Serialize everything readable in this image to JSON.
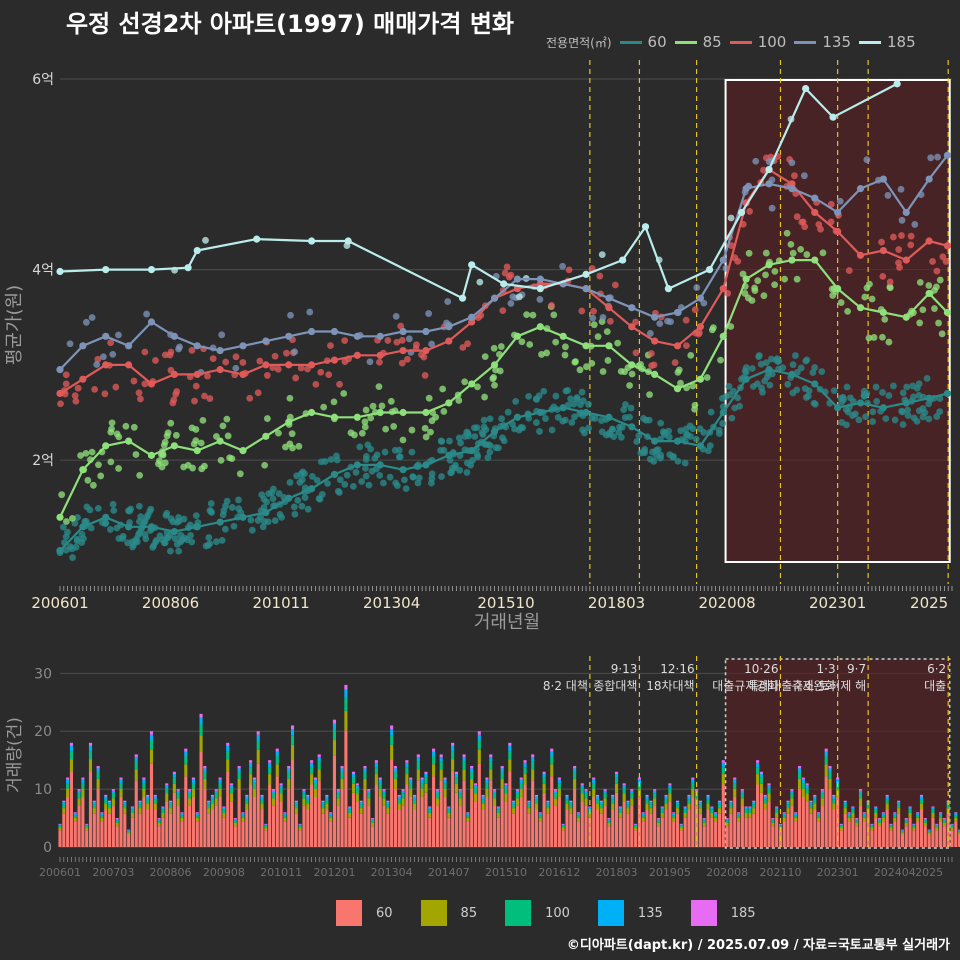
{
  "title": "우정 선경2차 아파트(1997) 매매가격 변화",
  "footer": "©디아파트(dapt.kr) / 2025.07.09 / 자료=국토교통부 실거래가",
  "legend_title": "전용면적(㎡)",
  "colors": {
    "60": "#2a8a8a",
    "85": "#8ee07a",
    "100": "#e05a5a",
    "135": "#7d93b8",
    "185": "#b9ecea",
    "bar60": "#f8766d",
    "bar85": "#a3a500",
    "bar100": "#00bf7d",
    "bar135": "#00b0f6",
    "bar185": "#e76bf3",
    "policy": "#e6c229",
    "highlight": "#5a1e22"
  },
  "chart_data": [
    {
      "type": "line",
      "title": "우정 선경2차 아파트(1997) 매매가격 변화",
      "xlabel": "거래년월",
      "ylabel": "평균가(원)",
      "x_ticks": [
        "200601",
        "200806",
        "201011",
        "201304",
        "201510",
        "201803",
        "202008",
        "202301",
        "2025"
      ],
      "y_ticks": [
        "2억",
        "4억",
        "6억"
      ],
      "ylim": [
        0.7,
        6.2
      ],
      "y_unit": "억",
      "legend_placement": "top-right",
      "series": [
        {
          "name": "60",
          "color": "#2a8a8a",
          "points": [
            [
              2006.0,
              1.05
            ],
            [
              2006.5,
              1.3
            ],
            [
              2007.0,
              1.4
            ],
            [
              2007.5,
              1.3
            ],
            [
              2008.0,
              1.3
            ],
            [
              2008.5,
              1.25
            ],
            [
              2009.0,
              1.3
            ],
            [
              2009.5,
              1.35
            ],
            [
              2010.0,
              1.4
            ],
            [
              2010.5,
              1.45
            ],
            [
              2011.0,
              1.6
            ],
            [
              2011.5,
              1.7
            ],
            [
              2012.0,
              1.85
            ],
            [
              2012.5,
              1.95
            ],
            [
              2013.0,
              1.95
            ],
            [
              2013.5,
              1.9
            ],
            [
              2014.0,
              1.95
            ],
            [
              2014.5,
              2.05
            ],
            [
              2015.0,
              2.1
            ],
            [
              2015.5,
              2.3
            ],
            [
              2016.0,
              2.45
            ],
            [
              2016.5,
              2.5
            ],
            [
              2017.0,
              2.55
            ],
            [
              2017.5,
              2.5
            ],
            [
              2018.0,
              2.45
            ],
            [
              2018.5,
              2.35
            ],
            [
              2019.0,
              2.2
            ],
            [
              2019.5,
              2.2
            ],
            [
              2020.0,
              2.15
            ],
            [
              2020.5,
              2.5
            ],
            [
              2021.0,
              2.85
            ],
            [
              2021.5,
              2.95
            ],
            [
              2022.0,
              2.9
            ],
            [
              2022.5,
              2.8
            ],
            [
              2023.0,
              2.55
            ],
            [
              2023.5,
              2.6
            ],
            [
              2024.0,
              2.55
            ],
            [
              2024.5,
              2.6
            ],
            [
              2025.0,
              2.65
            ],
            [
              2025.4,
              2.7
            ]
          ]
        },
        {
          "name": "85",
          "color": "#8ee07a",
          "points": [
            [
              2006.0,
              1.4
            ],
            [
              2006.5,
              1.9
            ],
            [
              2007.0,
              2.15
            ],
            [
              2007.5,
              2.2
            ],
            [
              2008.0,
              2.05
            ],
            [
              2008.5,
              2.15
            ],
            [
              2009.0,
              2.1
            ],
            [
              2009.5,
              2.2
            ],
            [
              2010.0,
              2.1
            ],
            [
              2010.5,
              2.25
            ],
            [
              2011.0,
              2.4
            ],
            [
              2011.5,
              2.5
            ],
            [
              2012.0,
              2.45
            ],
            [
              2012.5,
              2.45
            ],
            [
              2013.0,
              2.5
            ],
            [
              2013.5,
              2.5
            ],
            [
              2014.0,
              2.5
            ],
            [
              2014.5,
              2.6
            ],
            [
              2015.0,
              2.8
            ],
            [
              2015.5,
              3.0
            ],
            [
              2016.0,
              3.3
            ],
            [
              2016.5,
              3.4
            ],
            [
              2017.0,
              3.3
            ],
            [
              2017.5,
              3.2
            ],
            [
              2018.0,
              3.2
            ],
            [
              2018.5,
              3.0
            ],
            [
              2019.0,
              2.9
            ],
            [
              2019.5,
              2.75
            ],
            [
              2020.0,
              2.85
            ],
            [
              2020.5,
              3.3
            ],
            [
              2021.0,
              3.9
            ],
            [
              2021.5,
              4.05
            ],
            [
              2022.0,
              4.1
            ],
            [
              2022.5,
              4.1
            ],
            [
              2023.0,
              3.8
            ],
            [
              2023.5,
              3.6
            ],
            [
              2024.0,
              3.55
            ],
            [
              2024.5,
              3.5
            ],
            [
              2025.0,
              3.75
            ],
            [
              2025.4,
              3.55
            ]
          ]
        },
        {
          "name": "100",
          "color": "#e05a5a",
          "points": [
            [
              2006.0,
              2.7
            ],
            [
              2006.5,
              2.85
            ],
            [
              2007.0,
              3.0
            ],
            [
              2007.5,
              3.0
            ],
            [
              2008.0,
              2.8
            ],
            [
              2008.5,
              2.9
            ],
            [
              2009.0,
              2.9
            ],
            [
              2009.5,
              2.95
            ],
            [
              2010.0,
              2.9
            ],
            [
              2010.5,
              3.0
            ],
            [
              2011.0,
              3.0
            ],
            [
              2011.5,
              3.0
            ],
            [
              2012.0,
              3.05
            ],
            [
              2012.5,
              3.1
            ],
            [
              2013.0,
              3.1
            ],
            [
              2013.5,
              3.15
            ],
            [
              2014.0,
              3.15
            ],
            [
              2014.5,
              3.25
            ],
            [
              2015.0,
              3.45
            ],
            [
              2015.5,
              3.7
            ],
            [
              2016.0,
              3.8
            ],
            [
              2016.5,
              3.85
            ],
            [
              2017.0,
              3.85
            ],
            [
              2017.5,
              3.8
            ],
            [
              2018.0,
              3.6
            ],
            [
              2018.5,
              3.4
            ],
            [
              2019.0,
              3.25
            ],
            [
              2019.5,
              3.2
            ],
            [
              2020.0,
              3.4
            ],
            [
              2020.5,
              3.8
            ],
            [
              2021.0,
              4.7
            ],
            [
              2021.5,
              5.05
            ],
            [
              2022.0,
              4.9
            ],
            [
              2022.5,
              4.6
            ],
            [
              2023.0,
              4.4
            ],
            [
              2023.5,
              4.15
            ],
            [
              2024.0,
              4.2
            ],
            [
              2024.5,
              4.1
            ],
            [
              2025.0,
              4.3
            ],
            [
              2025.4,
              4.25
            ]
          ]
        },
        {
          "name": "135",
          "color": "#7d93b8",
          "points": [
            [
              2006.0,
              2.95
            ],
            [
              2006.5,
              3.2
            ],
            [
              2007.0,
              3.3
            ],
            [
              2007.5,
              3.2
            ],
            [
              2008.0,
              3.45
            ],
            [
              2008.5,
              3.3
            ],
            [
              2009.0,
              3.2
            ],
            [
              2009.5,
              3.15
            ],
            [
              2010.0,
              3.2
            ],
            [
              2010.5,
              3.25
            ],
            [
              2011.0,
              3.3
            ],
            [
              2011.5,
              3.35
            ],
            [
              2012.0,
              3.35
            ],
            [
              2012.5,
              3.3
            ],
            [
              2013.0,
              3.3
            ],
            [
              2013.5,
              3.35
            ],
            [
              2014.0,
              3.35
            ],
            [
              2014.5,
              3.4
            ],
            [
              2015.0,
              3.5
            ],
            [
              2015.5,
              3.7
            ],
            [
              2016.0,
              3.9
            ],
            [
              2016.5,
              3.9
            ],
            [
              2017.0,
              3.85
            ],
            [
              2017.5,
              3.8
            ],
            [
              2018.0,
              3.7
            ],
            [
              2018.5,
              3.6
            ],
            [
              2019.0,
              3.5
            ],
            [
              2019.5,
              3.55
            ],
            [
              2020.0,
              3.7
            ],
            [
              2020.5,
              4.1
            ],
            [
              2021.0,
              4.85
            ],
            [
              2021.5,
              4.9
            ],
            [
              2022.0,
              4.85
            ],
            [
              2022.5,
              4.75
            ],
            [
              2023.0,
              4.6
            ],
            [
              2023.5,
              4.85
            ],
            [
              2024.0,
              4.95
            ],
            [
              2024.5,
              4.6
            ],
            [
              2025.0,
              4.95
            ],
            [
              2025.4,
              5.2
            ]
          ]
        },
        {
          "name": "185",
          "color": "#b9ecea",
          "points": [
            [
              2006.0,
              3.98
            ],
            [
              2007.0,
              4.0
            ],
            [
              2008.0,
              4.0
            ],
            [
              2008.8,
              4.02
            ],
            [
              2009.0,
              4.2
            ],
            [
              2010.3,
              4.32
            ],
            [
              2011.5,
              4.3
            ],
            [
              2012.3,
              4.3
            ],
            [
              2014.8,
              3.7
            ],
            [
              2015.0,
              4.05
            ],
            [
              2015.7,
              3.85
            ],
            [
              2016.5,
              3.8
            ],
            [
              2017.5,
              3.95
            ],
            [
              2018.3,
              4.1
            ],
            [
              2018.8,
              4.45
            ],
            [
              2019.3,
              3.8
            ],
            [
              2020.2,
              4.0
            ],
            [
              2020.9,
              4.6
            ],
            [
              2021.5,
              5.05
            ],
            [
              2022.3,
              5.9
            ],
            [
              2022.9,
              5.6
            ],
            [
              2024.3,
              5.95
            ]
          ]
        }
      ]
    },
    {
      "type": "bar",
      "xlabel": "",
      "ylabel": "거래량(건)",
      "y_ticks": [
        "0",
        "10",
        "20",
        "30"
      ],
      "ylim": [
        0,
        33
      ],
      "x_ticks": [
        "200601",
        "200703",
        "200806",
        "200908",
        "201011",
        "201201",
        "201304",
        "201407",
        "201510",
        "201612",
        "201803",
        "201905",
        "202008",
        "202110",
        "202301",
        "202404",
        "2025"
      ],
      "series_names": [
        "60",
        "85",
        "100",
        "135",
        "185"
      ],
      "period": {
        "start": 2006.0,
        "step_months": 1
      },
      "monthly_totals": [
        4,
        8,
        12,
        18,
        6,
        10,
        12,
        4,
        18,
        8,
        14,
        6,
        9,
        8,
        10,
        5,
        12,
        8,
        3,
        7,
        16,
        8,
        12,
        9,
        20,
        9,
        5,
        7,
        11,
        8,
        13,
        10,
        6,
        17,
        10,
        12,
        6,
        23,
        14,
        8,
        9,
        10,
        12,
        7,
        18,
        11,
        5,
        14,
        6,
        9,
        15,
        12,
        20,
        9,
        4,
        15,
        10,
        17,
        11,
        6,
        14,
        21,
        8,
        4,
        10,
        9,
        15,
        12,
        16,
        8,
        9,
        6,
        22,
        10,
        14,
        28,
        7,
        13,
        11,
        8,
        14,
        10,
        5,
        15,
        12,
        10,
        8,
        21,
        14,
        9,
        10,
        15,
        12,
        9,
        16,
        12,
        13,
        7,
        17,
        10,
        16,
        12,
        7,
        18,
        13,
        10,
        16,
        6,
        14,
        11,
        20,
        9,
        12,
        16,
        10,
        7,
        14,
        11,
        18,
        8,
        10,
        12,
        15,
        8,
        16,
        9,
        6,
        13,
        8,
        17,
        10,
        12,
        4,
        9,
        8,
        14,
        6,
        11,
        10,
        7,
        12,
        9,
        8,
        10,
        5,
        9,
        13,
        7,
        11,
        8,
        10,
        4,
        12,
        6,
        9,
        8,
        10,
        5,
        7,
        9,
        11,
        6,
        8,
        4,
        7,
        9,
        12,
        10,
        8,
        5,
        9,
        7,
        6,
        8,
        15,
        5,
        8,
        12,
        6,
        10,
        7,
        7,
        8,
        15,
        13,
        9,
        11,
        5,
        7,
        4,
        6,
        8,
        10,
        6,
        14,
        12,
        11,
        8,
        9,
        6,
        10,
        17,
        14,
        9,
        12,
        4,
        8,
        6,
        7,
        5,
        10,
        6,
        8,
        4,
        7,
        5,
        6,
        9,
        4,
        6,
        8,
        3,
        5,
        7,
        4,
        6,
        9,
        5,
        3,
        7,
        4,
        6,
        5,
        8,
        4,
        6,
        3,
        5,
        9,
        6,
        7,
        4,
        5,
        8
      ]
    }
  ],
  "annotations": [
    {
      "x": "201708",
      "label_top": "",
      "label_bottom": "8·2 대책"
    },
    {
      "x": "201809",
      "label_top": "9·13",
      "label_bottom": "종합대책"
    },
    {
      "x": "201912",
      "label_top": "12·16",
      "label_bottom": "18차대책"
    },
    {
      "x": "202110",
      "label_top": "10·26",
      "label_bottom": "대출규제강화"
    },
    {
      "x": "202301",
      "label_top": "1·3",
      "label_bottom": "규제완화"
    },
    {
      "x": "202309",
      "label_top": "9·7",
      "label_bottom": "특례대출축소 토허제 해"
    },
    {
      "x": "202506",
      "label_top": "6·2",
      "label_bottom": "대출"
    }
  ]
}
